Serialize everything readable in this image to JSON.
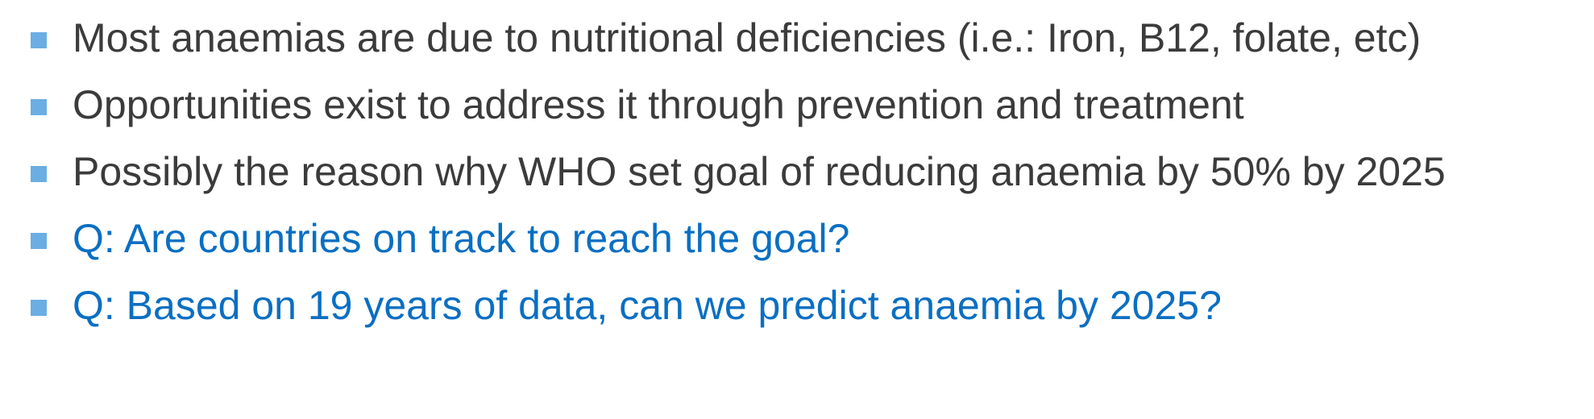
{
  "bullets": [
    {
      "text": "Most anaemias are due to nutritional deficiencies (i.e.: Iron, B12, folate, etc)",
      "style": "dark"
    },
    {
      "text": "Opportunities exist to address it through prevention and treatment",
      "style": "dark"
    },
    {
      "text": "Possibly the reason why WHO set goal of reducing anaemia by 50% by 2025",
      "style": "dark"
    },
    {
      "text": "Q: Are countries on track to reach the goal?",
      "style": "blue"
    },
    {
      "text": "Q: Based on 19 years of data, can we predict anaemia by 2025?",
      "style": "blue"
    }
  ],
  "colors": {
    "bullet_marker": "#6aaee3",
    "text_dark": "#3b3b3b",
    "text_blue": "#0a6fc2"
  }
}
